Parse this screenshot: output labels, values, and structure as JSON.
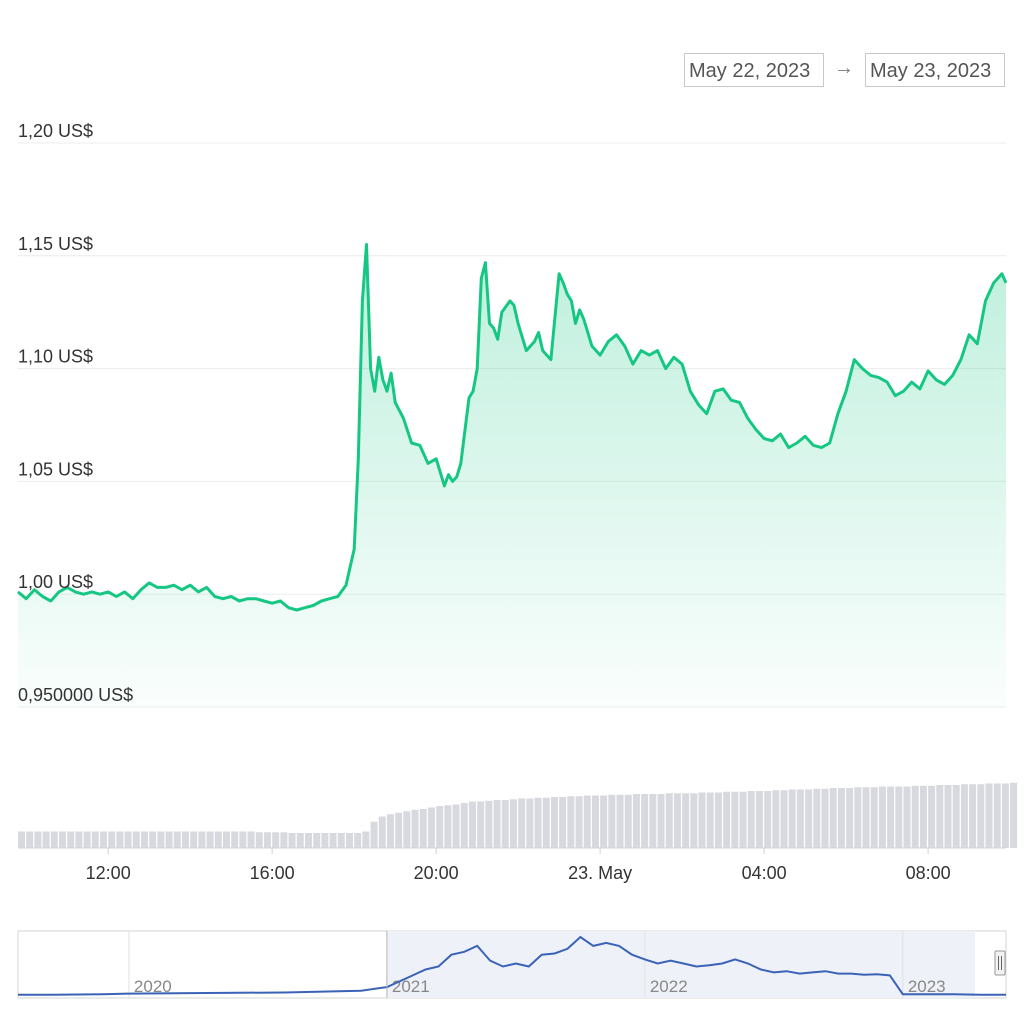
{
  "range_selector": {
    "from": "May 22, 2023",
    "arrow": "→",
    "to": "May 23, 2023"
  },
  "chart_data": {
    "type": "area",
    "y_ticks": [
      {
        "value": 1.2,
        "label": "1,20 US$"
      },
      {
        "value": 1.15,
        "label": "1,15 US$"
      },
      {
        "value": 1.1,
        "label": "1,10 US$"
      },
      {
        "value": 1.05,
        "label": "1,05 US$"
      },
      {
        "value": 1.0,
        "label": "1,00 US$"
      },
      {
        "value": 0.95,
        "label": "0,950000 US$"
      }
    ],
    "ylim": [
      0.95,
      1.2
    ],
    "x_ticks": [
      {
        "hour": 12,
        "label": "12:00"
      },
      {
        "hour": 16,
        "label": "16:00"
      },
      {
        "hour": 20,
        "label": "20:00"
      },
      {
        "hour": 24,
        "label": "23. May"
      },
      {
        "hour": 28,
        "label": "04:00"
      },
      {
        "hour": 32,
        "label": "08:00"
      }
    ],
    "xlim_hours": [
      9.8,
      33.9
    ],
    "price": {
      "hours": [
        9.8,
        10.0,
        10.2,
        10.4,
        10.6,
        10.8,
        11.0,
        11.2,
        11.4,
        11.6,
        11.8,
        12.0,
        12.2,
        12.4,
        12.6,
        12.8,
        13.0,
        13.2,
        13.4,
        13.6,
        13.8,
        14.0,
        14.2,
        14.4,
        14.6,
        14.8,
        15.0,
        15.2,
        15.4,
        15.6,
        15.8,
        16.0,
        16.2,
        16.4,
        16.6,
        16.8,
        17.0,
        17.2,
        17.4,
        17.6,
        17.8,
        18.0,
        18.1,
        18.2,
        18.3,
        18.4,
        18.5,
        18.6,
        18.7,
        18.8,
        18.9,
        19.0,
        19.2,
        19.4,
        19.6,
        19.8,
        20.0,
        20.2,
        20.3,
        20.4,
        20.5,
        20.6,
        20.8,
        20.9,
        21.0,
        21.1,
        21.2,
        21.3,
        21.4,
        21.5,
        21.6,
        21.8,
        21.9,
        22.0,
        22.2,
        22.4,
        22.5,
        22.6,
        22.8,
        23.0,
        23.1,
        23.2,
        23.3,
        23.4,
        23.5,
        23.6,
        23.8,
        24.0,
        24.2,
        24.4,
        24.6,
        24.8,
        25.0,
        25.2,
        25.4,
        25.6,
        25.8,
        26.0,
        26.2,
        26.4,
        26.6,
        26.8,
        27.0,
        27.2,
        27.4,
        27.6,
        27.8,
        28.0,
        28.2,
        28.4,
        28.6,
        28.8,
        29.0,
        29.2,
        29.4,
        29.6,
        29.8,
        30.0,
        30.2,
        30.4,
        30.6,
        30.8,
        31.0,
        31.2,
        31.4,
        31.6,
        31.8,
        32.0,
        32.2,
        32.4,
        32.6,
        32.8,
        33.0,
        33.2,
        33.4,
        33.6,
        33.8,
        33.9
      ],
      "values": [
        1.001,
        0.998,
        1.002,
        0.999,
        0.997,
        1.001,
        1.003,
        1.001,
        1.0,
        1.001,
        1.0,
        1.001,
        0.999,
        1.001,
        0.998,
        1.002,
        1.005,
        1.003,
        1.003,
        1.004,
        1.002,
        1.004,
        1.001,
        1.003,
        0.999,
        0.998,
        0.999,
        0.997,
        0.998,
        0.998,
        0.997,
        0.996,
        0.997,
        0.994,
        0.993,
        0.994,
        0.995,
        0.997,
        0.998,
        0.999,
        1.004,
        1.02,
        1.06,
        1.13,
        1.155,
        1.1,
        1.09,
        1.105,
        1.095,
        1.09,
        1.098,
        1.085,
        1.078,
        1.067,
        1.066,
        1.058,
        1.06,
        1.048,
        1.053,
        1.05,
        1.052,
        1.058,
        1.087,
        1.09,
        1.1,
        1.14,
        1.147,
        1.12,
        1.118,
        1.113,
        1.125,
        1.13,
        1.128,
        1.12,
        1.108,
        1.112,
        1.116,
        1.108,
        1.104,
        1.142,
        1.138,
        1.133,
        1.13,
        1.12,
        1.126,
        1.122,
        1.11,
        1.106,
        1.112,
        1.115,
        1.11,
        1.102,
        1.108,
        1.106,
        1.108,
        1.1,
        1.105,
        1.102,
        1.09,
        1.084,
        1.08,
        1.09,
        1.091,
        1.086,
        1.085,
        1.078,
        1.073,
        1.069,
        1.068,
        1.071,
        1.065,
        1.067,
        1.07,
        1.066,
        1.065,
        1.067,
        1.08,
        1.09,
        1.104,
        1.1,
        1.097,
        1.096,
        1.094,
        1.088,
        1.09,
        1.094,
        1.091,
        1.099,
        1.095,
        1.093,
        1.097,
        1.104,
        1.115,
        1.111,
        1.13,
        1.138,
        1.142,
        1.138
      ],
      "line_color": "#16c784",
      "fill_color": "#16c784"
    },
    "volume": {
      "hours_start": 9.8,
      "hours_step": 0.2,
      "relative_heights": [
        0.22,
        0.22,
        0.22,
        0.22,
        0.22,
        0.22,
        0.22,
        0.22,
        0.22,
        0.22,
        0.22,
        0.22,
        0.22,
        0.22,
        0.22,
        0.22,
        0.22,
        0.22,
        0.22,
        0.22,
        0.22,
        0.22,
        0.22,
        0.22,
        0.22,
        0.22,
        0.22,
        0.22,
        0.22,
        0.21,
        0.21,
        0.21,
        0.21,
        0.2,
        0.2,
        0.2,
        0.2,
        0.2,
        0.2,
        0.2,
        0.2,
        0.2,
        0.22,
        0.35,
        0.42,
        0.45,
        0.47,
        0.49,
        0.51,
        0.52,
        0.54,
        0.56,
        0.57,
        0.58,
        0.6,
        0.62,
        0.62,
        0.63,
        0.64,
        0.64,
        0.65,
        0.66,
        0.66,
        0.67,
        0.67,
        0.68,
        0.68,
        0.69,
        0.69,
        0.7,
        0.7,
        0.7,
        0.71,
        0.71,
        0.71,
        0.72,
        0.72,
        0.72,
        0.72,
        0.73,
        0.73,
        0.73,
        0.73,
        0.74,
        0.74,
        0.74,
        0.75,
        0.75,
        0.75,
        0.76,
        0.76,
        0.76,
        0.77,
        0.77,
        0.78,
        0.78,
        0.78,
        0.79,
        0.79,
        0.8,
        0.8,
        0.8,
        0.81,
        0.81,
        0.81,
        0.82,
        0.82,
        0.82,
        0.82,
        0.83,
        0.83,
        0.83,
        0.84,
        0.84,
        0.84,
        0.85,
        0.85,
        0.85,
        0.86,
        0.86,
        0.86,
        0.87
      ]
    },
    "navigator": {
      "year_labels": [
        {
          "year": 2020,
          "label": "2020"
        },
        {
          "year": 2021,
          "label": "2021"
        },
        {
          "year": 2022,
          "label": "2022"
        },
        {
          "year": 2023,
          "label": "2023"
        }
      ],
      "xlim_years": [
        2019.57,
        2023.4
      ],
      "selected_years": [
        2021.0,
        2023.28
      ],
      "line_color": "#3a63b8",
      "years": [
        2019.57,
        2019.7,
        2019.9,
        2020.0,
        2020.3,
        2020.6,
        2020.9,
        2021.0,
        2021.1,
        2021.15,
        2021.2,
        2021.25,
        2021.3,
        2021.35,
        2021.4,
        2021.45,
        2021.5,
        2021.55,
        2021.6,
        2021.65,
        2021.7,
        2021.75,
        2021.8,
        2021.85,
        2021.9,
        2021.95,
        2022.0,
        2022.05,
        2022.1,
        2022.15,
        2022.2,
        2022.25,
        2022.3,
        2022.35,
        2022.4,
        2022.45,
        2022.5,
        2022.55,
        2022.6,
        2022.65,
        2022.7,
        2022.75,
        2022.8,
        2022.85,
        2022.9,
        2022.95,
        2023.0,
        2023.1,
        2023.2,
        2023.3,
        2023.4
      ],
      "values": [
        0.02,
        0.02,
        0.03,
        0.04,
        0.05,
        0.06,
        0.09,
        0.15,
        0.35,
        0.45,
        0.5,
        0.7,
        0.75,
        0.85,
        0.6,
        0.5,
        0.55,
        0.5,
        0.7,
        0.72,
        0.8,
        1.0,
        0.85,
        0.9,
        0.85,
        0.7,
        0.62,
        0.55,
        0.6,
        0.55,
        0.5,
        0.52,
        0.55,
        0.62,
        0.55,
        0.45,
        0.4,
        0.42,
        0.38,
        0.4,
        0.42,
        0.38,
        0.38,
        0.36,
        0.37,
        0.35,
        0.03,
        0.03,
        0.03,
        0.02,
        0.02
      ]
    }
  }
}
